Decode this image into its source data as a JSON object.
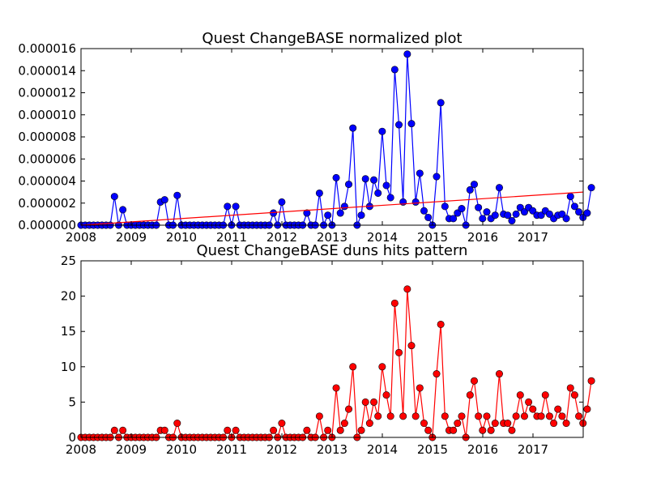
{
  "chart_data": [
    {
      "type": "line",
      "title": "Quest ChangeBASE normalized plot",
      "xlabel": "",
      "ylabel": "",
      "xlim": [
        2008.0,
        2018.0
      ],
      "ylim": [
        0,
        1.6e-05
      ],
      "x_ticks": [
        2008,
        2009,
        2010,
        2011,
        2012,
        2013,
        2014,
        2015,
        2016,
        2017
      ],
      "x_tick_labels": [
        "2008",
        "2009",
        "2010",
        "2011",
        "2012",
        "2013",
        "2014",
        "2015",
        "2016",
        "2017"
      ],
      "y_ticks": [
        0,
        2e-06,
        4e-06,
        6e-06,
        8e-06,
        1e-05,
        1.2e-05,
        1.4e-05,
        1.6e-05
      ],
      "y_tick_labels": [
        "0.000000",
        "0.000002",
        "0.000004",
        "0.000006",
        "0.000008",
        "0.000010",
        "0.000012",
        "0.000014",
        "0.000016"
      ],
      "grid": false,
      "legend": false,
      "series": [
        {
          "color": "#0000ff",
          "marker": "circle",
          "x_start": 2008.0,
          "x_step": 0.0833,
          "values": [
            0,
            0,
            0,
            0,
            0,
            0,
            0,
            0,
            2.6e-06,
            0,
            1.4e-06,
            0,
            0,
            0,
            0,
            0,
            0,
            0,
            0,
            2.1e-06,
            2.3e-06,
            0,
            0,
            2.7e-06,
            0,
            0,
            0,
            0,
            0,
            0,
            0,
            0,
            0,
            0,
            0,
            1.7e-06,
            0,
            1.7e-06,
            0,
            0,
            0,
            0,
            0,
            0,
            0,
            0,
            1.1e-06,
            0,
            2.1e-06,
            0,
            0,
            0,
            0,
            0,
            1.1e-06,
            0,
            0,
            2.9e-06,
            0,
            9e-07,
            0,
            4.3e-06,
            1.1e-06,
            1.7e-06,
            3.7e-06,
            8.8e-06,
            0,
            9e-07,
            4.2e-06,
            1.7e-06,
            4.1e-06,
            2.9e-06,
            8.5e-06,
            3.6e-06,
            2.5e-06,
            1.41e-05,
            9.1e-06,
            2.1e-06,
            1.55e-05,
            9.2e-06,
            2.1e-06,
            4.7e-06,
            1.3e-06,
            7e-07,
            0,
            4.4e-06,
            1.11e-05,
            1.7e-06,
            6e-07,
            6e-07,
            1.1e-06,
            1.5e-06,
            0,
            3.2e-06,
            3.7e-06,
            1.6e-06,
            6e-07,
            1.2e-06,
            6e-07,
            9e-07,
            3.4e-06,
            1e-06,
            9e-07,
            4e-07,
            1e-06,
            1.6e-06,
            1.2e-06,
            1.6e-06,
            1.3e-06,
            9e-07,
            9e-07,
            1.3e-06,
            1e-06,
            6e-07,
            9e-07,
            1e-06,
            6e-07,
            2.6e-06,
            1.7e-06,
            1.2e-06,
            7e-07,
            1.1e-06,
            3.4e-06
          ]
        },
        {
          "color": "#ff0000",
          "marker": "none",
          "x": [
            2008.0,
            2018.0
          ],
          "values": [
            0,
            3e-06
          ]
        }
      ]
    },
    {
      "type": "line",
      "title": "Quest ChangeBASE duns hits pattern",
      "xlabel": "",
      "ylabel": "",
      "xlim": [
        2008.0,
        2018.0
      ],
      "ylim": [
        0,
        25
      ],
      "x_ticks": [
        2008,
        2009,
        2010,
        2011,
        2012,
        2013,
        2014,
        2015,
        2016,
        2017
      ],
      "x_tick_labels": [
        "2008",
        "2009",
        "2010",
        "2011",
        "2012",
        "2013",
        "2014",
        "2015",
        "2016",
        "2017"
      ],
      "y_ticks": [
        0,
        5,
        10,
        15,
        20,
        25
      ],
      "y_tick_labels": [
        "0",
        "5",
        "10",
        "15",
        "20",
        "25"
      ],
      "grid": false,
      "legend": false,
      "series": [
        {
          "color": "#ff0000",
          "marker": "circle",
          "x_start": 2008.0,
          "x_step": 0.0833,
          "values": [
            0,
            0,
            0,
            0,
            0,
            0,
            0,
            0,
            1,
            0,
            1,
            0,
            0,
            0,
            0,
            0,
            0,
            0,
            0,
            1,
            1,
            0,
            0,
            2,
            0,
            0,
            0,
            0,
            0,
            0,
            0,
            0,
            0,
            0,
            0,
            1,
            0,
            1,
            0,
            0,
            0,
            0,
            0,
            0,
            0,
            0,
            1,
            0,
            2,
            0,
            0,
            0,
            0,
            0,
            1,
            0,
            0,
            3,
            0,
            1,
            0,
            7,
            1,
            2,
            4,
            10,
            0,
            1,
            5,
            2,
            5,
            3,
            10,
            6,
            3,
            19,
            12,
            3,
            21,
            13,
            3,
            7,
            2,
            1,
            0,
            9,
            16,
            3,
            1,
            1,
            2,
            3,
            0,
            6,
            8,
            3,
            1,
            3,
            1,
            2,
            9,
            2,
            2,
            1,
            3,
            6,
            3,
            5,
            4,
            3,
            3,
            6,
            3,
            2,
            4,
            3,
            2,
            7,
            6,
            3,
            2,
            4,
            8
          ]
        }
      ]
    }
  ]
}
